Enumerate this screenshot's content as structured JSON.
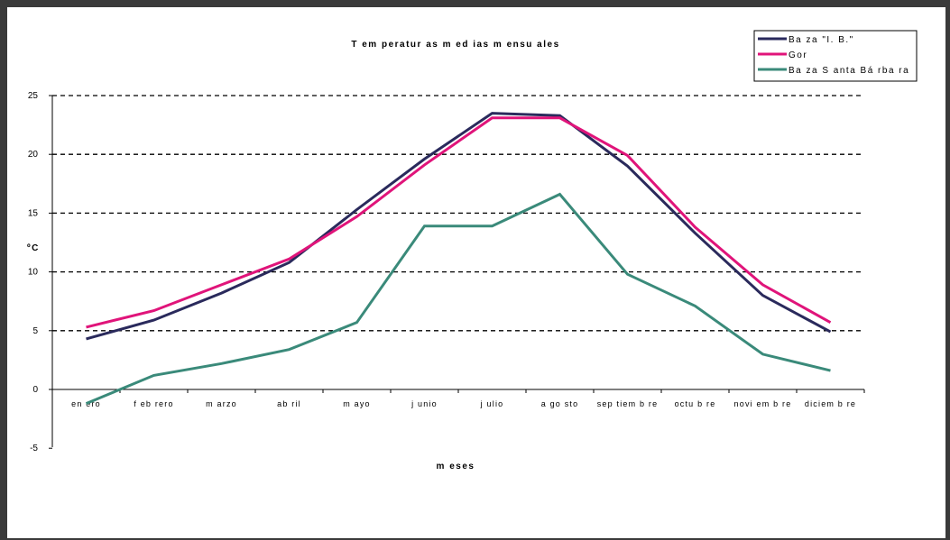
{
  "chart_data": {
    "type": "line",
    "title": "T em peratur as m ed ias  m ensu ales",
    "xlabel": "m eses",
    "ylabel": "ºC",
    "categories": [
      "en ero",
      "f eb rero",
      "m arzo",
      "ab ril",
      "m ayo",
      "j unio",
      "j ulio",
      "a go sto",
      "sep tiem b re",
      "octu b re",
      "novi em b re",
      "diciem b re"
    ],
    "yticks": [
      -5,
      0,
      5,
      10,
      15,
      20,
      25
    ],
    "ylim": [
      -5,
      25
    ],
    "grid": true,
    "legend": "top-right",
    "series": [
      {
        "name": "Ba za  \"I. B.\"",
        "color": "#2a2a5c",
        "values": [
          4.3,
          5.9,
          8.2,
          10.8,
          15.3,
          19.6,
          23.5,
          23.3,
          19.0,
          13.3,
          8.0,
          4.9
        ]
      },
      {
        "name": "Gor",
        "color": "#e0147a",
        "values": [
          5.3,
          6.7,
          8.9,
          11.1,
          14.7,
          19.1,
          23.1,
          23.1,
          19.9,
          13.8,
          8.9,
          5.7
        ]
      },
      {
        "name": "Ba za  S anta  Bá rba ra",
        "color": "#3a8a7a",
        "values": [
          -1.2,
          1.2,
          2.2,
          3.4,
          5.7,
          13.9,
          13.9,
          16.6,
          9.8,
          7.1,
          3.0,
          1.6
        ]
      }
    ]
  }
}
